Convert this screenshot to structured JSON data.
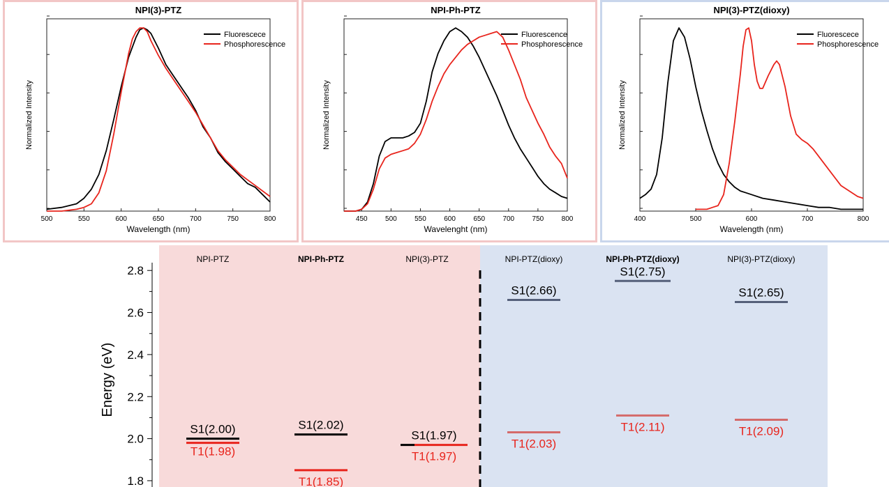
{
  "panels": [
    {
      "title": "NPI(3)-PTZ",
      "xlabel": "Wavelength (nm)",
      "ylabel": "Normalized Intensity",
      "legend": [
        "Fluorescece",
        "Phosphorescence"
      ],
      "xticks": [
        "500",
        "550",
        "600",
        "650",
        "700",
        "750",
        "800"
      ],
      "border_color": "#f2c6c6"
    },
    {
      "title": "NPI-Ph-PTZ",
      "xlabel": "Wavelenght (nm)",
      "ylabel": "Normalized Intensity",
      "legend": [
        "Fluorescence",
        "Phosphorescence"
      ],
      "xticks": [
        "450",
        "500",
        "550",
        "600",
        "650",
        "700",
        "750",
        "800"
      ],
      "border_color": "#f2c6c6"
    },
    {
      "title": "NPI(3)-PTZ(dioxy)",
      "xlabel": "Wavelength (nm)",
      "ylabel": "Normalized Intensity",
      "legend": [
        "Fluorescece",
        "Phosphorescence"
      ],
      "xticks": [
        "400",
        "500",
        "600",
        "700",
        "800"
      ],
      "border_color": "#c9d6ec"
    }
  ],
  "diagram": {
    "ylabel": "Energy (eV)",
    "yticks": [
      "2.8",
      "2.6",
      "2.4",
      "2.2",
      "2.0",
      "1.8"
    ],
    "columns": [
      "NPI-PTZ",
      "NPI-Ph-PTZ",
      "NPI(3)-PTZ",
      "NPI-PTZ(dioxy)",
      "NPI-Ph-PTZ(dioxy)",
      "NPI(3)-PTZ(dioxy)"
    ],
    "s1_labels": [
      "S1(2.00)",
      "S1(2.02)",
      "S1(1.97)",
      "S1(2.66)",
      "S1(2.75)",
      "S1(2.65)"
    ],
    "t1_labels": [
      "T1(1.98)",
      "T1(1.85)",
      "T1(1.97)",
      "T1(2.03)",
      "T1(2.11)",
      "T1(2.09)"
    ],
    "colors": {
      "pink_bg": "#f8dada",
      "blue_bg": "#dae3f2",
      "s1": "#000000",
      "t1": "#e8241c"
    }
  },
  "chart_data": [
    {
      "type": "line",
      "title": "NPI(3)-PTZ",
      "xlabel": "Wavelength (nm)",
      "ylabel": "Normalized Intensity",
      "xlim": [
        500,
        800
      ],
      "ylim": [
        0,
        1.05
      ],
      "legend_position": "top-right",
      "series": [
        {
          "name": "Fluorescece",
          "color": "#000000",
          "x": [
            500,
            520,
            540,
            550,
            560,
            570,
            580,
            590,
            600,
            610,
            620,
            625,
            630,
            635,
            640,
            650,
            660,
            670,
            680,
            690,
            700,
            710,
            720,
            730,
            740,
            750,
            760,
            770,
            780,
            790,
            800
          ],
          "y": [
            0.01,
            0.02,
            0.04,
            0.07,
            0.12,
            0.2,
            0.33,
            0.5,
            0.68,
            0.84,
            0.95,
            0.99,
            1.0,
            0.99,
            0.97,
            0.89,
            0.8,
            0.74,
            0.68,
            0.62,
            0.55,
            0.46,
            0.4,
            0.32,
            0.27,
            0.23,
            0.19,
            0.15,
            0.13,
            0.09,
            0.05
          ]
        },
        {
          "name": "Phosphorescence",
          "color": "#e8241c",
          "x": [
            500,
            520,
            540,
            550,
            560,
            570,
            580,
            590,
            600,
            610,
            615,
            620,
            625,
            630,
            635,
            640,
            650,
            660,
            670,
            680,
            690,
            700,
            710,
            720,
            730,
            740,
            750,
            760,
            770,
            780,
            790,
            800
          ],
          "y": [
            0.0,
            0.0,
            0.01,
            0.02,
            0.04,
            0.1,
            0.22,
            0.42,
            0.65,
            0.86,
            0.94,
            0.98,
            1.0,
            1.0,
            0.98,
            0.93,
            0.85,
            0.78,
            0.72,
            0.66,
            0.6,
            0.54,
            0.47,
            0.4,
            0.33,
            0.28,
            0.24,
            0.2,
            0.17,
            0.14,
            0.11,
            0.08
          ]
        }
      ]
    },
    {
      "type": "line",
      "title": "NPI-Ph-PTZ",
      "xlabel": "Wavelenght (nm)",
      "ylabel": "Normalized Intensity",
      "xlim": [
        420,
        800
      ],
      "ylim": [
        0,
        1.05
      ],
      "legend_position": "top-right",
      "series": [
        {
          "name": "Fluorescence",
          "color": "#000000",
          "x": [
            420,
            440,
            450,
            460,
            470,
            480,
            490,
            500,
            510,
            520,
            530,
            540,
            550,
            560,
            570,
            580,
            590,
            600,
            610,
            620,
            630,
            640,
            650,
            660,
            670,
            680,
            690,
            700,
            710,
            720,
            730,
            740,
            750,
            760,
            770,
            780,
            790,
            800
          ],
          "y": [
            0.0,
            0.0,
            0.01,
            0.05,
            0.15,
            0.3,
            0.38,
            0.4,
            0.4,
            0.4,
            0.41,
            0.43,
            0.48,
            0.6,
            0.76,
            0.86,
            0.93,
            0.98,
            1.0,
            0.98,
            0.95,
            0.9,
            0.84,
            0.77,
            0.7,
            0.63,
            0.55,
            0.47,
            0.4,
            0.34,
            0.29,
            0.24,
            0.19,
            0.15,
            0.12,
            0.1,
            0.08,
            0.07
          ]
        },
        {
          "name": "Phosphorescence",
          "color": "#e8241c",
          "x": [
            420,
            440,
            450,
            460,
            470,
            480,
            490,
            500,
            510,
            520,
            530,
            540,
            550,
            560,
            570,
            580,
            590,
            600,
            610,
            620,
            630,
            640,
            650,
            660,
            670,
            680,
            690,
            700,
            710,
            720,
            730,
            740,
            750,
            760,
            770,
            780,
            790,
            800
          ],
          "y": [
            0.0,
            0.0,
            0.01,
            0.04,
            0.12,
            0.23,
            0.29,
            0.31,
            0.32,
            0.33,
            0.34,
            0.37,
            0.42,
            0.5,
            0.6,
            0.68,
            0.75,
            0.8,
            0.84,
            0.88,
            0.91,
            0.93,
            0.95,
            0.96,
            0.97,
            0.98,
            0.95,
            0.88,
            0.8,
            0.72,
            0.62,
            0.55,
            0.48,
            0.42,
            0.35,
            0.3,
            0.26,
            0.18
          ]
        }
      ]
    },
    {
      "type": "line",
      "title": "NPI(3)-PTZ(dioxy)",
      "xlabel": "Wavelength (nm)",
      "ylabel": "Normalized Intensity",
      "xlim": [
        400,
        800
      ],
      "ylim": [
        0,
        1.05
      ],
      "legend_position": "top-right",
      "series": [
        {
          "name": "Fluorescece",
          "color": "#000000",
          "x": [
            400,
            410,
            420,
            430,
            440,
            450,
            460,
            470,
            480,
            490,
            500,
            510,
            520,
            530,
            540,
            550,
            560,
            570,
            580,
            590,
            600,
            620,
            640,
            660,
            680,
            700,
            720,
            740,
            760,
            780,
            800
          ],
          "y": [
            0.07,
            0.09,
            0.12,
            0.2,
            0.4,
            0.7,
            0.93,
            1.0,
            0.95,
            0.83,
            0.68,
            0.55,
            0.44,
            0.34,
            0.26,
            0.2,
            0.16,
            0.13,
            0.11,
            0.1,
            0.09,
            0.07,
            0.06,
            0.05,
            0.04,
            0.03,
            0.02,
            0.02,
            0.01,
            0.01,
            0.01
          ]
        },
        {
          "name": "Phosphorescence",
          "color": "#e8241c",
          "x": [
            500,
            520,
            530,
            540,
            550,
            560,
            570,
            580,
            585,
            590,
            595,
            600,
            605,
            610,
            615,
            620,
            630,
            640,
            645,
            650,
            660,
            670,
            680,
            690,
            700,
            710,
            720,
            740,
            760,
            780,
            790,
            800
          ],
          "y": [
            0.01,
            0.01,
            0.02,
            0.03,
            0.09,
            0.26,
            0.49,
            0.75,
            0.9,
            0.99,
            1.0,
            0.93,
            0.8,
            0.71,
            0.67,
            0.67,
            0.74,
            0.8,
            0.82,
            0.8,
            0.68,
            0.52,
            0.42,
            0.39,
            0.37,
            0.34,
            0.3,
            0.22,
            0.14,
            0.1,
            0.08,
            0.07
          ]
        }
      ]
    },
    {
      "type": "scatter",
      "title": "",
      "ylabel": "Energy (eV)",
      "ylim": [
        1.77,
        2.92
      ],
      "categories": [
        "NPI-PTZ",
        "NPI-Ph-PTZ",
        "NPI(3)-PTZ",
        "NPI-PTZ(dioxy)",
        "NPI-Ph-PTZ(dioxy)",
        "NPI(3)-PTZ(dioxy)"
      ],
      "series": [
        {
          "name": "S1",
          "color": "#000000",
          "values": [
            2.0,
            2.02,
            1.97,
            2.66,
            2.75,
            2.65
          ]
        },
        {
          "name": "T1",
          "color": "#e8241c",
          "values": [
            1.98,
            1.85,
            1.97,
            2.03,
            2.11,
            2.09
          ]
        }
      ]
    }
  ]
}
